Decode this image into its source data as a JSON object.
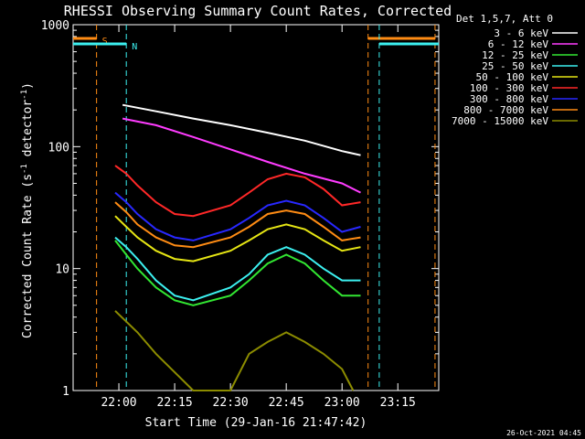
{
  "chart_data": {
    "type": "line",
    "title": "RHESSI Observing Summary Count Rates, Corrected",
    "xlabel": "Start Time (29-Jan-16 21:47:42)",
    "ylabel_main": "Corrected Count Rate (s",
    "ylabel_sup1": "-1",
    "ylabel_mid": " detector",
    "ylabel_sup2": "-1",
    "ylabel_end": ")",
    "y_scale": "log",
    "ylim": [
      1,
      1000
    ],
    "xlim": [
      "21:47:42",
      "23:26:00"
    ],
    "x_ticks": [
      {
        "label": "22:00",
        "time": "22:00"
      },
      {
        "label": "22:15",
        "time": "22:15"
      },
      {
        "label": "22:30",
        "time": "22:30"
      },
      {
        "label": "22:45",
        "time": "22:45"
      },
      {
        "label": "23:00",
        "time": "23:00"
      },
      {
        "label": "23:15",
        "time": "23:15"
      }
    ],
    "y_ticks": [
      {
        "label": "1",
        "value": 1
      },
      {
        "label": "10",
        "value": 10
      },
      {
        "label": "100",
        "value": 100
      },
      {
        "label": "1000",
        "value": 1000
      }
    ],
    "legend_title": "Det 1,5,7, Att 0",
    "legend_position": "top-right, outside plot",
    "series": [
      {
        "name": "3 - 6 keV",
        "color": "#ffffff",
        "x": [
          "22:01",
          "22:10",
          "22:20",
          "22:30",
          "22:40",
          "22:50",
          "23:00",
          "23:05"
        ],
        "y": [
          220,
          195,
          170,
          150,
          130,
          112,
          92,
          85
        ]
      },
      {
        "name": "6 - 12 keV",
        "color": "#ff3cff",
        "x": [
          "22:01",
          "22:10",
          "22:20",
          "22:30",
          "22:40",
          "22:50",
          "23:00",
          "23:05"
        ],
        "y": [
          170,
          150,
          120,
          95,
          75,
          60,
          50,
          42
        ]
      },
      {
        "name": "12 - 25 keV",
        "color": "#32e632",
        "x": [
          "21:59",
          "22:02",
          "22:05",
          "22:10",
          "22:15",
          "22:20",
          "22:30",
          "22:35",
          "22:40",
          "22:45",
          "22:50",
          "22:55",
          "23:00",
          "23:05"
        ],
        "y": [
          17,
          13,
          10,
          7,
          5.5,
          5,
          6,
          8,
          11,
          13,
          11,
          8,
          6,
          6
        ]
      },
      {
        "name": "25 - 50 keV",
        "color": "#3cf0f0",
        "x": [
          "21:59",
          "22:02",
          "22:05",
          "22:10",
          "22:15",
          "22:20",
          "22:30",
          "22:35",
          "22:40",
          "22:45",
          "22:50",
          "22:55",
          "23:00",
          "23:05"
        ],
        "y": [
          18,
          15,
          12,
          8,
          6,
          5.5,
          7,
          9,
          13,
          15,
          13,
          10,
          8,
          8
        ]
      },
      {
        "name": "50 - 100 keV",
        "color": "#e6e614",
        "x": [
          "21:59",
          "22:02",
          "22:05",
          "22:10",
          "22:15",
          "22:20",
          "22:30",
          "22:35",
          "22:40",
          "22:45",
          "22:50",
          "22:55",
          "23:00",
          "23:05"
        ],
        "y": [
          27,
          22,
          18,
          14,
          12,
          11.5,
          14,
          17,
          21,
          23,
          21,
          17,
          14,
          15
        ]
      },
      {
        "name": "100 - 300 keV",
        "color": "#ff2828",
        "x": [
          "21:59",
          "22:02",
          "22:05",
          "22:10",
          "22:15",
          "22:20",
          "22:30",
          "22:35",
          "22:40",
          "22:45",
          "22:50",
          "22:55",
          "23:00",
          "23:05"
        ],
        "y": [
          70,
          60,
          48,
          35,
          28,
          27,
          33,
          42,
          54,
          60,
          56,
          45,
          33,
          35
        ]
      },
      {
        "name": "300 - 800 keV",
        "color": "#2828ff",
        "x": [
          "21:59",
          "22:02",
          "22:05",
          "22:10",
          "22:15",
          "22:20",
          "22:30",
          "22:35",
          "22:40",
          "22:45",
          "22:50",
          "22:55",
          "23:00",
          "23:05"
        ],
        "y": [
          42,
          35,
          28,
          21,
          18,
          17,
          21,
          26,
          33,
          36,
          33,
          26,
          20,
          22
        ]
      },
      {
        "name": "800 - 7000 keV",
        "color": "#ff8c14",
        "x": [
          "21:59",
          "22:02",
          "22:05",
          "22:10",
          "22:15",
          "22:20",
          "22:30",
          "22:35",
          "22:40",
          "22:45",
          "22:50",
          "22:55",
          "23:00",
          "23:05"
        ],
        "y": [
          35,
          29,
          23,
          18,
          15.5,
          15,
          18,
          22,
          28,
          30,
          28,
          22,
          17,
          18
        ]
      },
      {
        "name": "7000 - 15000 keV",
        "color": "#8c8c00",
        "x": [
          "21:59",
          "22:05",
          "22:10",
          "22:20",
          "22:30",
          "22:35",
          "22:40",
          "22:45",
          "22:50",
          "22:55",
          "23:00",
          "23:03"
        ],
        "y": [
          4.5,
          3,
          2,
          1,
          1,
          2,
          2.5,
          3,
          2.5,
          2,
          1.5,
          1
        ]
      }
    ],
    "flags": [
      {
        "label": "S",
        "color": "#ff8c14",
        "bars": [
          [
            "21:47:42",
            "21:54:00"
          ],
          [
            "23:07:00",
            "23:25:00"
          ]
        ]
      },
      {
        "label": "N",
        "color": "#3cf0f0",
        "bars": [
          [
            "21:47:42",
            "22:02:00"
          ],
          [
            "23:10:00",
            "23:26:00"
          ]
        ]
      }
    ],
    "timestamp": "26-Oct-2021 04:45"
  }
}
